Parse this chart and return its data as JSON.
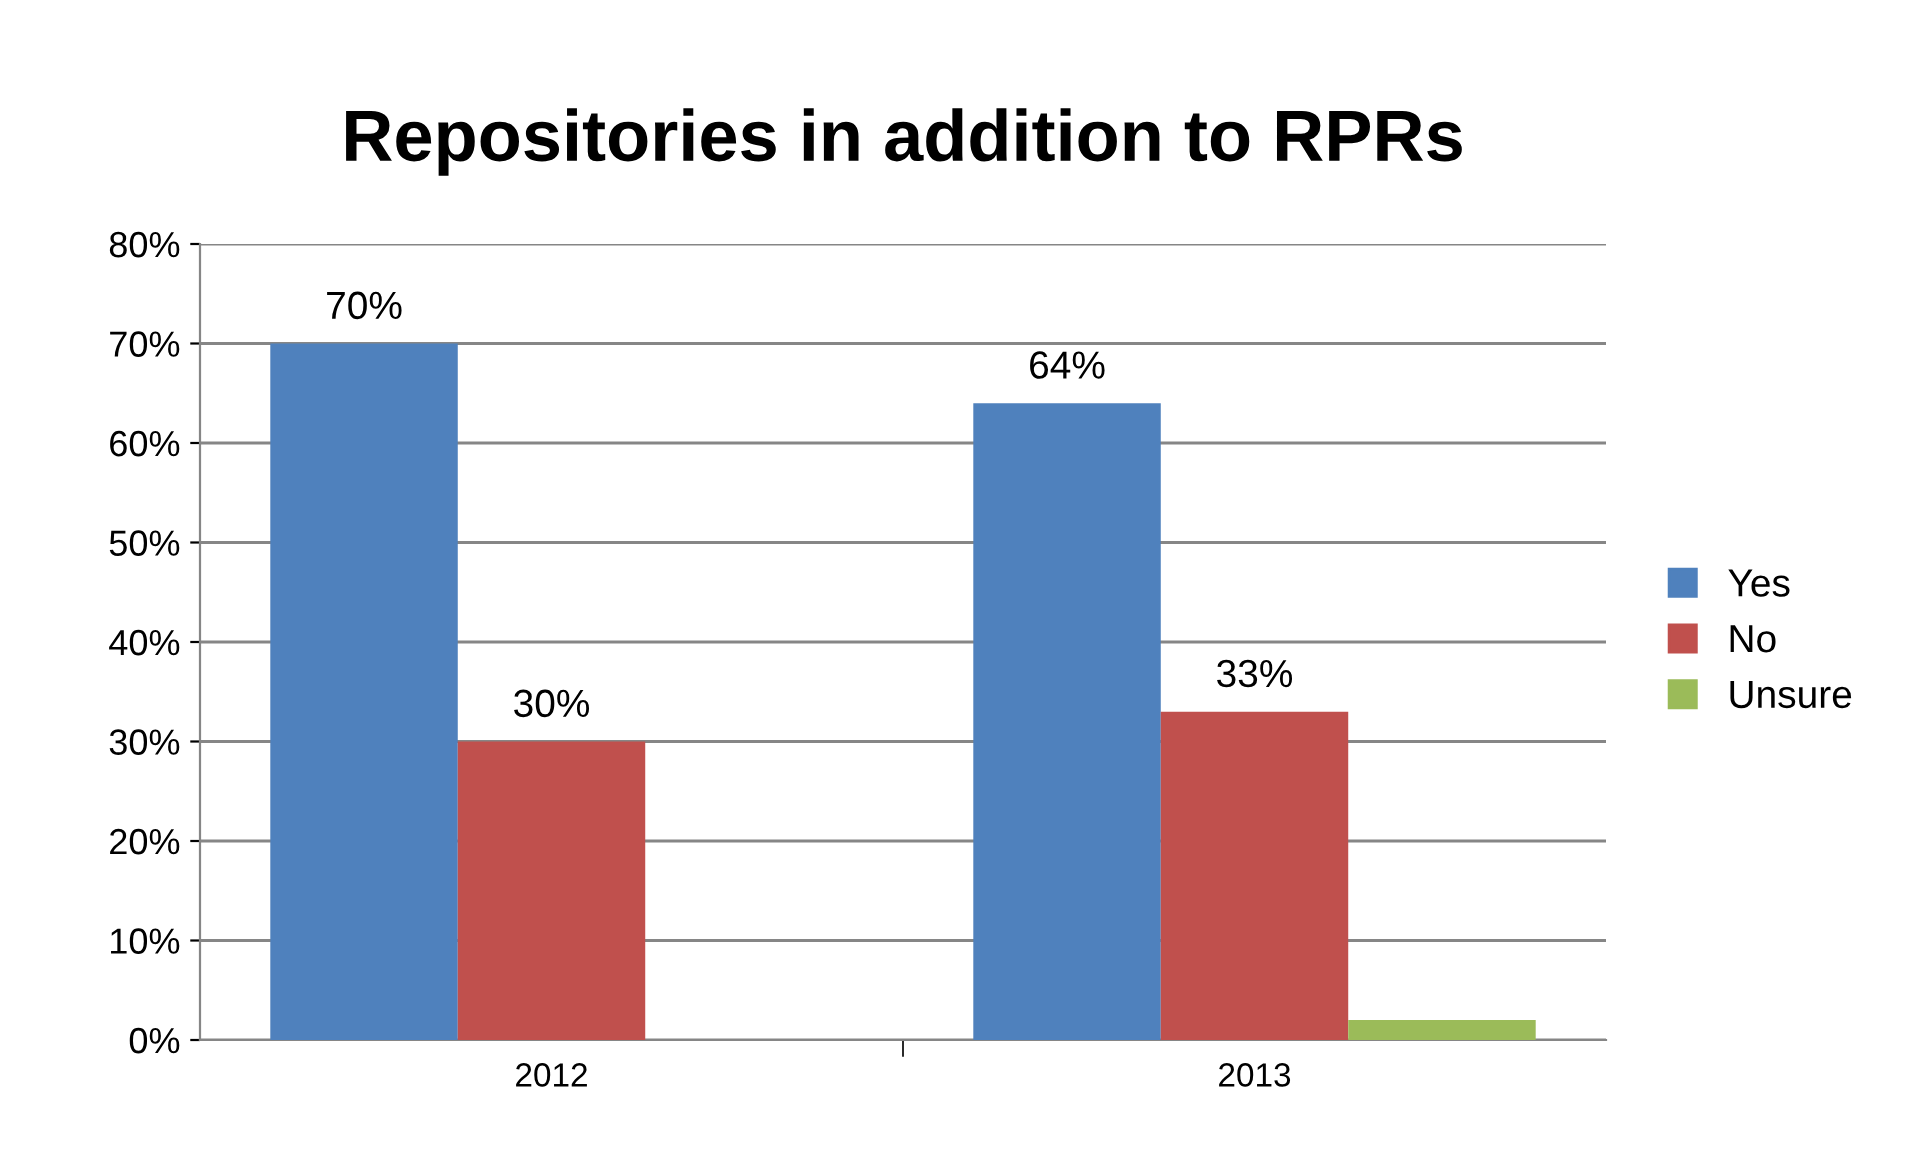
{
  "chart_data": {
    "type": "bar",
    "title": "Repositories in addition to RPRs",
    "categories": [
      "2012",
      "2013"
    ],
    "series": [
      {
        "name": "Yes",
        "color": "#4f81bd",
        "values": [
          70,
          64
        ],
        "value_labels": [
          "70%",
          "64%"
        ]
      },
      {
        "name": "No",
        "color": "#c0504d",
        "values": [
          30,
          33
        ],
        "value_labels": [
          "30%",
          "33%"
        ]
      },
      {
        "name": "Unsure",
        "color": "#9bbb59",
        "values": [
          null,
          2
        ],
        "value_labels": [
          null,
          null
        ]
      }
    ],
    "ylim": [
      0,
      80
    ],
    "yticks": [
      {
        "value": 0,
        "label": "0%"
      },
      {
        "value": 10,
        "label": "10%"
      },
      {
        "value": 20,
        "label": "20%"
      },
      {
        "value": 30,
        "label": "30%"
      },
      {
        "value": 40,
        "label": "40%"
      },
      {
        "value": 50,
        "label": "50%"
      },
      {
        "value": 60,
        "label": "60%"
      },
      {
        "value": 70,
        "label": "70%"
      },
      {
        "value": 80,
        "label": "80%"
      }
    ],
    "grid": "y",
    "legend": "right"
  }
}
